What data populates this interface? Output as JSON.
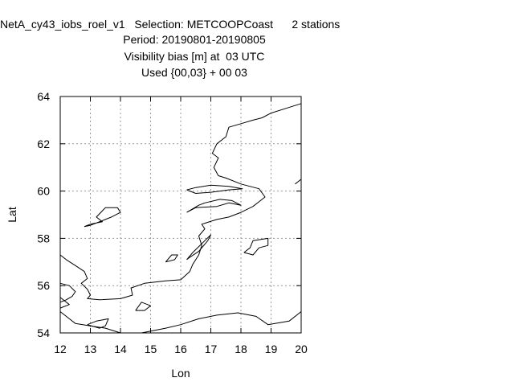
{
  "chart_data": {
    "type": "map",
    "title": "NetA_cy43_iobs_roel_v1   Selection: METCOOPCoast      2 stations",
    "subtitle_lines": [
      "Period: 20190801-20190805",
      "Visibility bias [m] at  03 UTC",
      "Used {00,03} + 00 03"
    ],
    "xlabel": "Lon",
    "ylabel": "Lat",
    "xlim": [
      12,
      20
    ],
    "ylim": [
      54,
      64
    ],
    "x_ticks": [
      "12",
      "13",
      "14",
      "15",
      "16",
      "17",
      "18",
      "19",
      "20"
    ],
    "y_ticks": [
      "54",
      "56",
      "58",
      "60",
      "62",
      "64"
    ],
    "x_tick_values": [
      12,
      13,
      14,
      15,
      16,
      17,
      18,
      19,
      20
    ],
    "y_tick_values": [
      54,
      56,
      58,
      60,
      62,
      64
    ],
    "grid": true,
    "coastlines": [
      [
        [
          12.0,
          57.3
        ],
        [
          12.2,
          57.1
        ],
        [
          12.5,
          56.85
        ],
        [
          12.8,
          56.6
        ],
        [
          12.9,
          56.3
        ],
        [
          12.7,
          56.1
        ],
        [
          12.9,
          55.85
        ],
        [
          13.0,
          55.6
        ],
        [
          12.9,
          55.45
        ],
        [
          13.3,
          55.4
        ],
        [
          14.0,
          55.45
        ],
        [
          14.4,
          55.6
        ],
        [
          14.35,
          55.9
        ],
        [
          14.8,
          56.1
        ],
        [
          15.5,
          56.2
        ],
        [
          16.0,
          56.25
        ],
        [
          16.3,
          56.6
        ],
        [
          16.4,
          56.9
        ],
        [
          16.6,
          57.3
        ],
        [
          16.7,
          57.7
        ],
        [
          16.6,
          58.1
        ],
        [
          16.8,
          58.4
        ],
        [
          16.7,
          58.6
        ],
        [
          17.2,
          58.8
        ],
        [
          17.6,
          58.9
        ],
        [
          18.0,
          59.1
        ],
        [
          18.4,
          59.35
        ],
        [
          18.8,
          59.75
        ],
        [
          18.6,
          60.1
        ],
        [
          18.0,
          60.3
        ],
        [
          17.5,
          60.55
        ],
        [
          17.25,
          60.65
        ],
        [
          17.1,
          61.0
        ],
        [
          17.25,
          61.4
        ],
        [
          17.05,
          61.6
        ],
        [
          17.2,
          62.0
        ],
        [
          17.5,
          62.3
        ],
        [
          17.6,
          62.7
        ],
        [
          18.0,
          62.85
        ],
        [
          18.4,
          63.0
        ],
        [
          18.7,
          63.1
        ],
        [
          19.0,
          63.3
        ],
        [
          19.5,
          63.5
        ],
        [
          20.0,
          63.7
        ]
      ],
      [
        [
          12.8,
          58.5
        ],
        [
          13.0,
          58.6
        ],
        [
          13.4,
          58.7
        ],
        [
          13.2,
          58.9
        ],
        [
          13.5,
          59.3
        ],
        [
          13.9,
          59.3
        ],
        [
          14.0,
          59.1
        ],
        [
          13.7,
          58.9
        ],
        [
          13.4,
          58.75
        ],
        [
          13.0,
          58.55
        ],
        [
          12.8,
          58.5
        ]
      ],
      [
        [
          16.2,
          59.1
        ],
        [
          16.5,
          59.3
        ],
        [
          17.2,
          59.35
        ],
        [
          17.6,
          59.5
        ],
        [
          18.0,
          59.4
        ],
        [
          17.7,
          59.6
        ],
        [
          17.3,
          59.65
        ],
        [
          16.8,
          59.5
        ],
        [
          16.6,
          59.4
        ],
        [
          16.2,
          59.1
        ]
      ],
      [
        [
          16.2,
          60.05
        ],
        [
          16.5,
          60.15
        ],
        [
          17.0,
          60.25
        ],
        [
          17.6,
          60.2
        ],
        [
          18.05,
          60.1
        ],
        [
          17.6,
          60.05
        ],
        [
          17.0,
          59.95
        ],
        [
          16.5,
          59.9
        ],
        [
          16.2,
          60.05
        ]
      ],
      [
        [
          16.2,
          57.1
        ],
        [
          16.4,
          57.4
        ],
        [
          16.8,
          57.9
        ],
        [
          17.0,
          58.15
        ],
        [
          16.9,
          57.9
        ],
        [
          16.6,
          57.45
        ],
        [
          16.3,
          57.2
        ],
        [
          16.2,
          57.1
        ]
      ],
      [
        [
          18.1,
          57.4
        ],
        [
          18.3,
          57.6
        ],
        [
          18.4,
          57.9
        ],
        [
          18.9,
          58.0
        ],
        [
          18.9,
          57.7
        ],
        [
          18.6,
          57.6
        ],
        [
          18.4,
          57.3
        ],
        [
          18.1,
          57.4
        ]
      ],
      [
        [
          15.5,
          57.0
        ],
        [
          15.8,
          57.1
        ],
        [
          15.9,
          57.3
        ],
        [
          15.7,
          57.3
        ],
        [
          15.5,
          57.0
        ]
      ],
      [
        [
          12.9,
          54.35
        ],
        [
          13.2,
          54.5
        ],
        [
          13.6,
          54.6
        ],
        [
          13.5,
          54.3
        ],
        [
          13.3,
          54.2
        ],
        [
          12.9,
          54.35
        ]
      ],
      [
        [
          14.5,
          54.95
        ],
        [
          14.7,
          55.3
        ],
        [
          15.0,
          55.15
        ],
        [
          14.8,
          54.95
        ],
        [
          14.5,
          54.95
        ]
      ],
      [
        [
          14.7,
          54.0
        ],
        [
          15.5,
          54.2
        ],
        [
          16.0,
          54.35
        ],
        [
          16.6,
          54.6
        ],
        [
          17.2,
          54.75
        ],
        [
          17.9,
          54.85
        ],
        [
          18.5,
          54.7
        ],
        [
          18.9,
          54.35
        ],
        [
          19.6,
          54.5
        ],
        [
          20.0,
          54.9
        ]
      ],
      [
        [
          12.0,
          54.9
        ],
        [
          12.3,
          54.6
        ],
        [
          12.5,
          54.4
        ],
        [
          13.0,
          54.3
        ],
        [
          13.5,
          54.2
        ],
        [
          14.0,
          54.0
        ]
      ],
      [
        [
          12.0,
          56.1
        ],
        [
          12.3,
          56.0
        ],
        [
          12.5,
          55.75
        ],
        [
          12.4,
          55.55
        ],
        [
          12.2,
          55.4
        ],
        [
          12.0,
          55.3
        ]
      ],
      [
        [
          12.0,
          55.5
        ],
        [
          12.3,
          55.2
        ],
        [
          12.0,
          55.05
        ]
      ],
      [
        [
          19.8,
          60.3
        ],
        [
          20.0,
          60.5
        ]
      ]
    ]
  }
}
